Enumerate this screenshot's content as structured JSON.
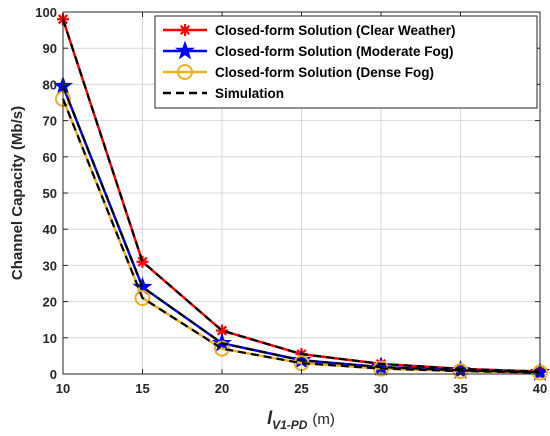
{
  "chart_data": {
    "type": "line",
    "xlabel_main": "l",
    "xlabel_sub": "V1-PD",
    "xlabel_unit": "(m)",
    "ylabel": "Channel Capacity (Mb/s)",
    "xlim": [
      10,
      40
    ],
    "ylim": [
      0,
      100
    ],
    "xticks": [
      10,
      15,
      20,
      25,
      30,
      35,
      40
    ],
    "yticks": [
      0,
      10,
      20,
      30,
      40,
      50,
      60,
      70,
      80,
      90,
      100
    ],
    "grid": true,
    "legend_position": "top-right",
    "x": [
      10,
      15,
      20,
      25,
      30,
      35,
      40
    ],
    "series": [
      {
        "name": "Closed-form Solution (Clear Weather)",
        "color": "#ff0000",
        "marker": "asterisk",
        "values": [
          98,
          31,
          12,
          5.5,
          2.8,
          1.4,
          0.7
        ]
      },
      {
        "name": "Closed-form Solution (Moderate Fog)",
        "color": "#0000ff",
        "marker": "star",
        "values": [
          79.5,
          24,
          8.5,
          3.8,
          1.9,
          1.0,
          0.5
        ]
      },
      {
        "name": "Closed-form Solution (Dense Fog)",
        "color": "#edb120",
        "marker": "circle",
        "values": [
          76,
          21,
          7,
          3.0,
          1.5,
          0.8,
          0.4
        ]
      },
      {
        "name": "Simulation",
        "color": "#000000",
        "marker": "none",
        "dashed": true,
        "values": [
          [
            98,
            31,
            12,
            5.5,
            2.8,
            1.4,
            0.7
          ],
          [
            79.5,
            24,
            8.5,
            3.8,
            1.9,
            1.0,
            0.5
          ],
          [
            76,
            21,
            7,
            3.0,
            1.5,
            0.8,
            0.4
          ]
        ]
      }
    ]
  }
}
